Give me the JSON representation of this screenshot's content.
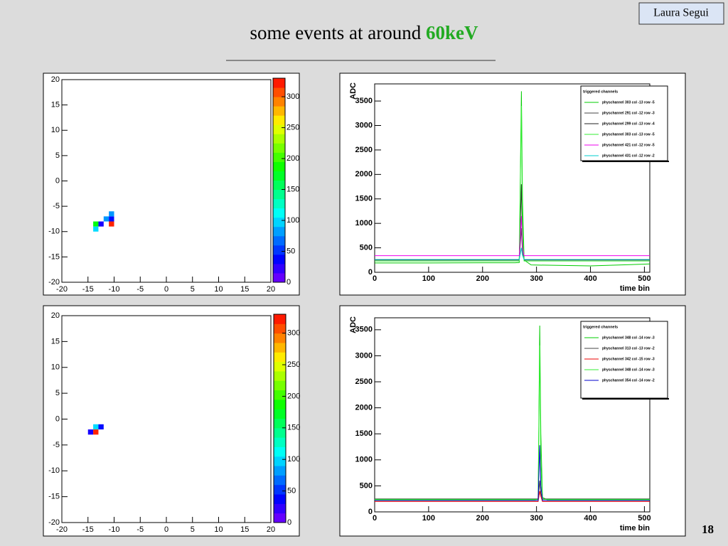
{
  "slide": {
    "author": "Laura Segui",
    "title": "some events at around",
    "title_highlight": "60keV",
    "page": 18
  },
  "chart_data": [
    {
      "type": "heatmap",
      "x": [
        -14,
        -14,
        -13,
        -12,
        -11,
        -11,
        -11
      ],
      "y": [
        -9,
        -10,
        -9,
        -8,
        -8,
        -7,
        -9
      ],
      "values": [
        180,
        100,
        30,
        80,
        40,
        80,
        320
      ],
      "bin_width": 1,
      "xlim": [
        -20,
        20
      ],
      "xticks": [
        -20,
        -15,
        -10,
        -5,
        0,
        5,
        10,
        15,
        20
      ],
      "ylim": [
        -20,
        20
      ],
      "yticks": [
        -20,
        -15,
        -10,
        -5,
        0,
        5,
        10,
        15,
        20
      ],
      "zlim": [
        0,
        330
      ],
      "zticks": [
        0,
        50,
        100,
        150,
        200,
        250,
        300
      ]
    },
    {
      "type": "line",
      "y_label": "ADC",
      "x_label": "time bin",
      "legend_title": "triggered channels",
      "x": [
        0,
        100,
        200,
        260,
        268,
        272,
        274,
        277,
        290,
        400,
        510
      ],
      "series": [
        {
          "name": "physchannel 303 col -13 row -5",
          "color": "#00cc00",
          "values": [
            190,
            190,
            195,
            195,
            200,
            3700,
            1500,
            250,
            150,
            130,
            170
          ]
        },
        {
          "name": "physchannel 291 col -12 row -3",
          "color": "#444444",
          "values": [
            260,
            260,
            260,
            260,
            260,
            900,
            400,
            260,
            260,
            260,
            260
          ]
        },
        {
          "name": "physchannel 299 col -13 row -4",
          "color": "#222222",
          "values": [
            250,
            250,
            250,
            250,
            250,
            1800,
            600,
            250,
            250,
            250,
            250
          ]
        },
        {
          "name": "physchannel 303 col -13 row -5",
          "color": "#33ee33",
          "values": [
            230,
            230,
            230,
            230,
            230,
            3400,
            800,
            230,
            230,
            230,
            230
          ]
        },
        {
          "name": "physchannel 421 col -12 row -5",
          "color": "#ee00ee",
          "values": [
            340,
            340,
            340,
            340,
            340,
            1150,
            500,
            340,
            340,
            340,
            340
          ]
        },
        {
          "name": "physchannel 431 col -12 row -2",
          "color": "#00cccc",
          "values": [
            260,
            260,
            260,
            260,
            260,
            500,
            350,
            260,
            260,
            260,
            260
          ]
        }
      ],
      "xlim": [
        0,
        510
      ],
      "xticks": [
        0,
        100,
        200,
        300,
        400,
        500
      ],
      "ylim": [
        0,
        3850
      ],
      "yticks": [
        0,
        500,
        1000,
        1500,
        2000,
        2500,
        3000,
        3500
      ]
    },
    {
      "type": "heatmap",
      "x": [
        -15,
        -14,
        -14,
        -13
      ],
      "y": [
        -3,
        -3,
        -2,
        -2
      ],
      "values": [
        30,
        320,
        100,
        40
      ],
      "bin_width": 1,
      "xlim": [
        -20,
        20
      ],
      "xticks": [
        -20,
        -15,
        -10,
        -5,
        0,
        5,
        10,
        15,
        20
      ],
      "ylim": [
        -20,
        20
      ],
      "yticks": [
        -20,
        -15,
        -10,
        -5,
        0,
        5,
        10,
        15,
        20
      ],
      "zlim": [
        0,
        330
      ],
      "zticks": [
        0,
        50,
        100,
        150,
        200,
        250,
        300
      ]
    },
    {
      "type": "line",
      "y_label": "ADC",
      "x_label": "time bin",
      "legend_title": "triggered channels",
      "x": [
        0,
        100,
        200,
        295,
        303,
        306,
        308,
        311,
        320,
        400,
        510
      ],
      "series": [
        {
          "name": "physchannel 348 col -14 row -3",
          "color": "#00cc00",
          "values": [
            230,
            230,
            230,
            230,
            240,
            3580,
            1500,
            280,
            230,
            230,
            230
          ]
        },
        {
          "name": "physchannel 313 col -13 row -2",
          "color": "#444444",
          "values": [
            250,
            250,
            250,
            250,
            250,
            600,
            350,
            250,
            250,
            250,
            250
          ]
        },
        {
          "name": "physchannel 342 col -15 row -3",
          "color": "#ee0000",
          "values": [
            200,
            200,
            200,
            200,
            200,
            400,
            300,
            200,
            200,
            200,
            200
          ]
        },
        {
          "name": "physchannel 348 col -14 row -3",
          "color": "#33ee33",
          "values": [
            240,
            240,
            240,
            240,
            240,
            3200,
            900,
            240,
            240,
            240,
            240
          ]
        },
        {
          "name": "physchannel 354 col -14 row -2",
          "color": "#0000cc",
          "values": [
            220,
            220,
            220,
            220,
            220,
            1280,
            500,
            220,
            220,
            220,
            220
          ]
        }
      ],
      "xlim": [
        0,
        510
      ],
      "xticks": [
        0,
        100,
        200,
        300,
        400,
        500
      ],
      "ylim": [
        0,
        3730
      ],
      "yticks": [
        0,
        500,
        1000,
        1500,
        2000,
        2500,
        3000,
        3500
      ]
    }
  ]
}
